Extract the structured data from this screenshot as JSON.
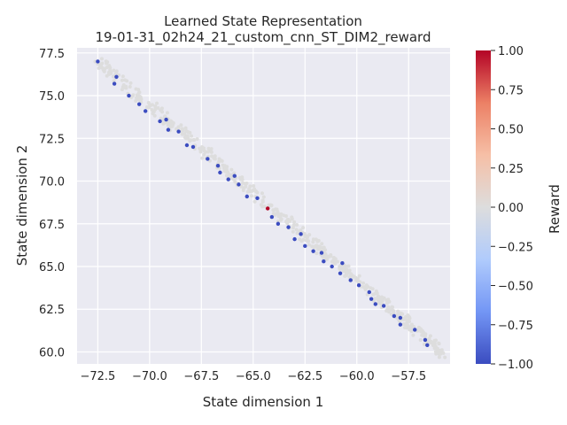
{
  "chart_data": {
    "type": "scatter",
    "title": "Learned State Representation",
    "subtitle": "19-01-31_02h24_21_custom_cnn_ST_DIM2_reward",
    "xlabel": "State dimension 1",
    "ylabel": "State dimension 2",
    "xlim": [
      -73.5,
      -55.5
    ],
    "ylim": [
      59.3,
      77.8
    ],
    "xticks": [
      -72.5,
      -70.0,
      -67.5,
      -65.0,
      -62.5,
      -60.0,
      -57.5
    ],
    "xtick_labels": [
      "−72.5",
      "−70.0",
      "−67.5",
      "−65.0",
      "−62.5",
      "−60.0",
      "−57.5"
    ],
    "yticks": [
      60.0,
      62.5,
      65.0,
      67.5,
      70.0,
      72.5,
      75.0,
      77.5
    ],
    "ytick_labels": [
      "60.0",
      "62.5",
      "65.0",
      "67.5",
      "70.0",
      "72.5",
      "75.0",
      "77.5"
    ],
    "grid": true,
    "background": "#eaeaf2",
    "colorbar": {
      "label": "Reward",
      "range": [
        -1.0,
        1.0
      ],
      "ticks": [
        1.0,
        0.75,
        0.5,
        0.25,
        0.0,
        -0.25,
        -0.5,
        -0.75,
        -1.0
      ],
      "tick_labels": [
        "1.00",
        "0.75",
        "0.50",
        "0.25",
        "0.00",
        "−0.25",
        "−0.50",
        "−0.75",
        "−1.00"
      ],
      "colormap": "coolwarm",
      "colors": [
        "#3b4cc0",
        "#7396f5",
        "#b0cbfc",
        "#dddddd",
        "#f6bfa6",
        "#ec8065",
        "#b40426"
      ]
    },
    "trend": {
      "start": [
        -72.5,
        77.0
      ],
      "end": [
        -55.7,
        59.8
      ],
      "point_count": 560,
      "reward_values": [
        -1.0,
        0.0,
        1.0
      ]
    },
    "highlighted_points": [
      {
        "x": -72.5,
        "y": 77.0,
        "reward": -1.0
      },
      {
        "x": -71.6,
        "y": 76.1,
        "reward": -1.0
      },
      {
        "x": -71.7,
        "y": 75.7,
        "reward": -1.0
      },
      {
        "x": -71.0,
        "y": 75.0,
        "reward": -1.0
      },
      {
        "x": -70.5,
        "y": 74.5,
        "reward": -1.0
      },
      {
        "x": -70.2,
        "y": 74.1,
        "reward": -1.0
      },
      {
        "x": -69.5,
        "y": 73.5,
        "reward": -1.0
      },
      {
        "x": -69.2,
        "y": 73.6,
        "reward": -1.0
      },
      {
        "x": -69.1,
        "y": 73.0,
        "reward": -1.0
      },
      {
        "x": -68.6,
        "y": 72.9,
        "reward": -1.0
      },
      {
        "x": -68.2,
        "y": 72.1,
        "reward": -1.0
      },
      {
        "x": -67.9,
        "y": 72.0,
        "reward": -1.0
      },
      {
        "x": -67.2,
        "y": 71.3,
        "reward": -1.0
      },
      {
        "x": -66.7,
        "y": 70.9,
        "reward": -1.0
      },
      {
        "x": -66.6,
        "y": 70.5,
        "reward": -1.0
      },
      {
        "x": -66.2,
        "y": 70.1,
        "reward": -1.0
      },
      {
        "x": -65.9,
        "y": 70.3,
        "reward": -1.0
      },
      {
        "x": -65.7,
        "y": 69.8,
        "reward": -1.0
      },
      {
        "x": -65.3,
        "y": 69.1,
        "reward": -1.0
      },
      {
        "x": -64.8,
        "y": 69.0,
        "reward": -1.0
      },
      {
        "x": -64.3,
        "y": 68.4,
        "reward": 1.0
      },
      {
        "x": -64.1,
        "y": 67.9,
        "reward": -1.0
      },
      {
        "x": -63.8,
        "y": 67.5,
        "reward": -1.0
      },
      {
        "x": -63.3,
        "y": 67.3,
        "reward": -1.0
      },
      {
        "x": -63.0,
        "y": 66.6,
        "reward": -1.0
      },
      {
        "x": -62.7,
        "y": 66.9,
        "reward": -1.0
      },
      {
        "x": -62.5,
        "y": 66.2,
        "reward": -1.0
      },
      {
        "x": -62.1,
        "y": 65.9,
        "reward": -1.0
      },
      {
        "x": -61.7,
        "y": 65.8,
        "reward": -1.0
      },
      {
        "x": -61.6,
        "y": 65.3,
        "reward": -1.0
      },
      {
        "x": -61.2,
        "y": 65.0,
        "reward": -1.0
      },
      {
        "x": -60.8,
        "y": 64.6,
        "reward": -1.0
      },
      {
        "x": -60.7,
        "y": 65.2,
        "reward": -1.0
      },
      {
        "x": -60.3,
        "y": 64.2,
        "reward": -1.0
      },
      {
        "x": -59.9,
        "y": 63.9,
        "reward": -1.0
      },
      {
        "x": -59.4,
        "y": 63.5,
        "reward": -1.0
      },
      {
        "x": -59.3,
        "y": 63.1,
        "reward": -1.0
      },
      {
        "x": -59.1,
        "y": 62.8,
        "reward": -1.0
      },
      {
        "x": -58.7,
        "y": 62.7,
        "reward": -1.0
      },
      {
        "x": -58.2,
        "y": 62.1,
        "reward": -1.0
      },
      {
        "x": -57.9,
        "y": 62.0,
        "reward": -1.0
      },
      {
        "x": -57.9,
        "y": 61.6,
        "reward": -1.0
      },
      {
        "x": -57.2,
        "y": 61.3,
        "reward": -1.0
      },
      {
        "x": -56.7,
        "y": 60.7,
        "reward": -1.0
      },
      {
        "x": -56.6,
        "y": 60.4,
        "reward": -1.0
      }
    ]
  }
}
